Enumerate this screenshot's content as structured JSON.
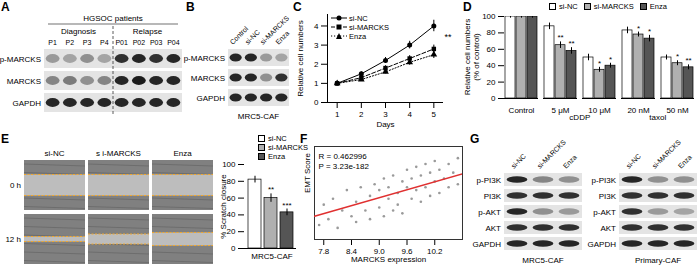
{
  "blots": [
    {
      "panel": "A",
      "title": "HGSOC patients",
      "groups": [
        {
          "label": "Diagnosis",
          "lanes": [
            "P1",
            "P2",
            "P3",
            "P4"
          ]
        },
        {
          "label": "Relapse",
          "lanes": [
            "P01",
            "P02",
            "P03",
            "P04"
          ]
        }
      ],
      "rows": [
        {
          "label": "p-MARCKS",
          "bands": [
            0.35,
            0.3,
            0.4,
            0.3,
            0.85,
            0.9,
            0.85,
            0.9
          ]
        },
        {
          "label": "MARCKS",
          "bands": [
            0.45,
            0.5,
            0.4,
            0.45,
            0.9,
            0.95,
            0.9,
            0.9
          ]
        },
        {
          "label": "GAPDH",
          "bands": [
            0.9,
            0.9,
            0.9,
            0.9,
            0.9,
            0.9,
            0.9,
            0.9
          ]
        }
      ]
    },
    {
      "panel": "B",
      "lanes": [
        "Control",
        "si-NC",
        "si-MARCKS",
        "Enza"
      ],
      "caption": "MRC5-CAF",
      "rows": [
        {
          "label": "p-MARCKS",
          "bands": [
            0.9,
            0.9,
            0.35,
            0.3
          ]
        },
        {
          "label": "MARCKS",
          "bands": [
            0.9,
            0.9,
            0.4,
            0.85
          ]
        },
        {
          "label": "GAPDH",
          "bands": [
            0.9,
            0.9,
            0.9,
            0.9
          ]
        }
      ]
    },
    {
      "panel": "G",
      "blots": [
        {
          "lanes": [
            "si-NC",
            "si-MARCKS",
            "Enza"
          ],
          "caption": "MRC5-CAF",
          "rows": [
            {
              "label": "p-PI3K",
              "bands": [
                0.9,
                0.45,
                0.4
              ]
            },
            {
              "label": "PI3K",
              "bands": [
                0.85,
                0.85,
                0.85
              ]
            },
            {
              "label": "p-AKT",
              "bands": [
                0.9,
                0.4,
                0.35
              ]
            },
            {
              "label": "AKT",
              "bands": [
                0.85,
                0.85,
                0.85
              ]
            },
            {
              "label": "GAPDH",
              "bands": [
                0.9,
                0.9,
                0.9
              ]
            }
          ]
        },
        {
          "lanes": [
            "si-NC",
            "si-MARCKS",
            "Enza"
          ],
          "caption": "Primary-CAF",
          "rows": [
            {
              "label": "p-PI3K",
              "bands": [
                0.9,
                0.4,
                0.4
              ]
            },
            {
              "label": "PI3K",
              "bands": [
                0.85,
                0.85,
                0.85
              ]
            },
            {
              "label": "p-AKT",
              "bands": [
                0.85,
                0.35,
                0.3
              ]
            },
            {
              "label": "AKT",
              "bands": [
                0.85,
                0.85,
                0.85
              ]
            },
            {
              "label": "GAPDH",
              "bands": [
                0.9,
                0.9,
                0.9
              ]
            }
          ]
        }
      ]
    }
  ],
  "micrographs": {
    "panel": "E",
    "columns": [
      "si-NC",
      "s i-MARCKS",
      "Enza"
    ],
    "rows": [
      "0 h",
      "12 h"
    ]
  },
  "chart_data": [
    {
      "panel": "C",
      "type": "line",
      "x": [
        1,
        2,
        3,
        4,
        5
      ],
      "x_label": "Days",
      "y_label": "Relative cell numbers",
      "xlim": [
        0.6,
        5.4
      ],
      "xticks": [
        1,
        2,
        3,
        4,
        5
      ],
      "ylim": [
        0,
        4.6
      ],
      "yticks": [
        0,
        1,
        2,
        3,
        4
      ],
      "legend": "top-left",
      "series": [
        {
          "name": "si-NC",
          "color": "#000000",
          "marker": "circle",
          "line_style": "solid",
          "values": [
            1,
            1.5,
            2.2,
            3.0,
            4.0
          ],
          "errors": [
            0.05,
            0.1,
            0.15,
            0.2,
            0.3
          ]
        },
        {
          "name": "si-MARCKS",
          "color": "#000000",
          "marker": "square",
          "line_style": "dashed",
          "values": [
            1,
            1.3,
            1.8,
            2.3,
            2.8
          ],
          "errors": [
            0.05,
            0.08,
            0.12,
            0.15,
            0.2
          ]
        },
        {
          "name": "Enza",
          "color": "#000000",
          "marker": "triangle",
          "line_style": "dotted",
          "values": [
            1,
            1.2,
            1.6,
            2.1,
            2.5
          ],
          "errors": [
            0.05,
            0.08,
            0.1,
            0.15,
            0.2
          ]
        }
      ],
      "annotations": [
        "**"
      ]
    },
    {
      "panel": "D",
      "type": "bar",
      "categories": [
        "Control",
        "5 μM",
        "10 μM",
        "20 nM",
        "50 nM"
      ],
      "groups": [
        {
          "label": "cDDP",
          "categories": [
            "5 μM",
            "10 μM"
          ]
        },
        {
          "label": "taxol",
          "categories": [
            "20 nM",
            "50 nM"
          ]
        }
      ],
      "y_label": "Relative cell numbers\n(% of control)",
      "ylim": [
        0,
        100
      ],
      "yticks": [
        0,
        20,
        40,
        60,
        80,
        100
      ],
      "legend": "top-right",
      "series": [
        {
          "name": "si-NC",
          "color": "#ffffff",
          "values": [
            100,
            88,
            50,
            83,
            50
          ],
          "errors": [
            2,
            4,
            4,
            4,
            3
          ],
          "stars": [
            null,
            null,
            null,
            null,
            null
          ]
        },
        {
          "name": "si-MARCKS",
          "color": "#b0b0b0",
          "values": [
            100,
            65,
            35,
            78,
            43
          ],
          "errors": [
            2,
            4,
            3,
            3,
            3
          ],
          "stars": [
            null,
            "**",
            "*",
            "*",
            "*"
          ]
        },
        {
          "name": "Enza",
          "color": "#555555",
          "values": [
            100,
            58,
            40,
            73,
            38
          ],
          "errors": [
            2,
            4,
            3,
            4,
            3
          ],
          "stars": [
            null,
            "**",
            "*",
            "*",
            "**"
          ]
        }
      ]
    },
    {
      "type": "bar",
      "categories": [
        "si-NC",
        "si-MARCKS",
        "Enza"
      ],
      "tick_labels": "y",
      "y_label": "% Scratch closure",
      "ylim": [
        0,
        100
      ],
      "yticks": [
        0,
        20,
        40,
        60,
        80,
        100
      ],
      "colors": [
        "#ffffff",
        "#b0b0b0",
        "#555555"
      ],
      "values": [
        82,
        60,
        43
      ],
      "errors": [
        4,
        5,
        4
      ],
      "stars": [
        null,
        "**",
        "***"
      ],
      "legend": "top-right",
      "caption": "MRC5-CAF"
    },
    {
      "panel": "F",
      "type": "scatter",
      "x_label": "MARCKS expression",
      "y_label": "EMT Score",
      "xlim": [
        7.6,
        10.8
      ],
      "xticks": [
        7.8,
        8.4,
        {
          "value": 9,
          "label": "9.0"
        },
        9.6,
        10.2
      ],
      "ylim": [
        -0.8,
        0.8
      ],
      "tick_labels": "x",
      "color": "#9a9a9a",
      "x": [
        7.7,
        7.8,
        7.9,
        8.0,
        8.1,
        8.2,
        8.3,
        8.4,
        8.5,
        8.5,
        8.6,
        8.7,
        8.8,
        8.8,
        8.9,
        9.0,
        9.0,
        9.1,
        9.1,
        9.2,
        9.2,
        9.3,
        9.3,
        9.4,
        9.4,
        9.5,
        9.5,
        9.6,
        9.6,
        9.7,
        9.7,
        9.8,
        9.8,
        9.9,
        9.9,
        10.0,
        10.0,
        10.1,
        10.1,
        10.2,
        10.2,
        10.3,
        10.3,
        10.4,
        10.5,
        10.5,
        10.6,
        10.7,
        10.7
      ],
      "y": [
        -0.55,
        -0.2,
        -0.45,
        -0.1,
        -0.6,
        -0.3,
        0.05,
        -0.4,
        -0.15,
        -0.5,
        0.1,
        -0.3,
        -0.05,
        -0.45,
        0.15,
        -0.25,
        0.05,
        -0.4,
        0.25,
        -0.1,
        0.1,
        -0.3,
        0.3,
        0.0,
        -0.2,
        0.2,
        -0.35,
        0.1,
        0.4,
        -0.1,
        0.25,
        0.05,
        0.45,
        -0.15,
        0.3,
        0.1,
        0.5,
        -0.05,
        0.35,
        0.2,
        0.55,
        0.0,
        0.4,
        0.25,
        0.5,
        0.1,
        0.35,
        0.6,
        0.15
      ],
      "fit": {
        "x": [
          7.6,
          10.8
        ],
        "y": [
          -0.4,
          0.33
        ],
        "color": "#e03030"
      },
      "annotations": [
        "R = 0.462996",
        "P = 3.23e-182"
      ]
    }
  ]
}
